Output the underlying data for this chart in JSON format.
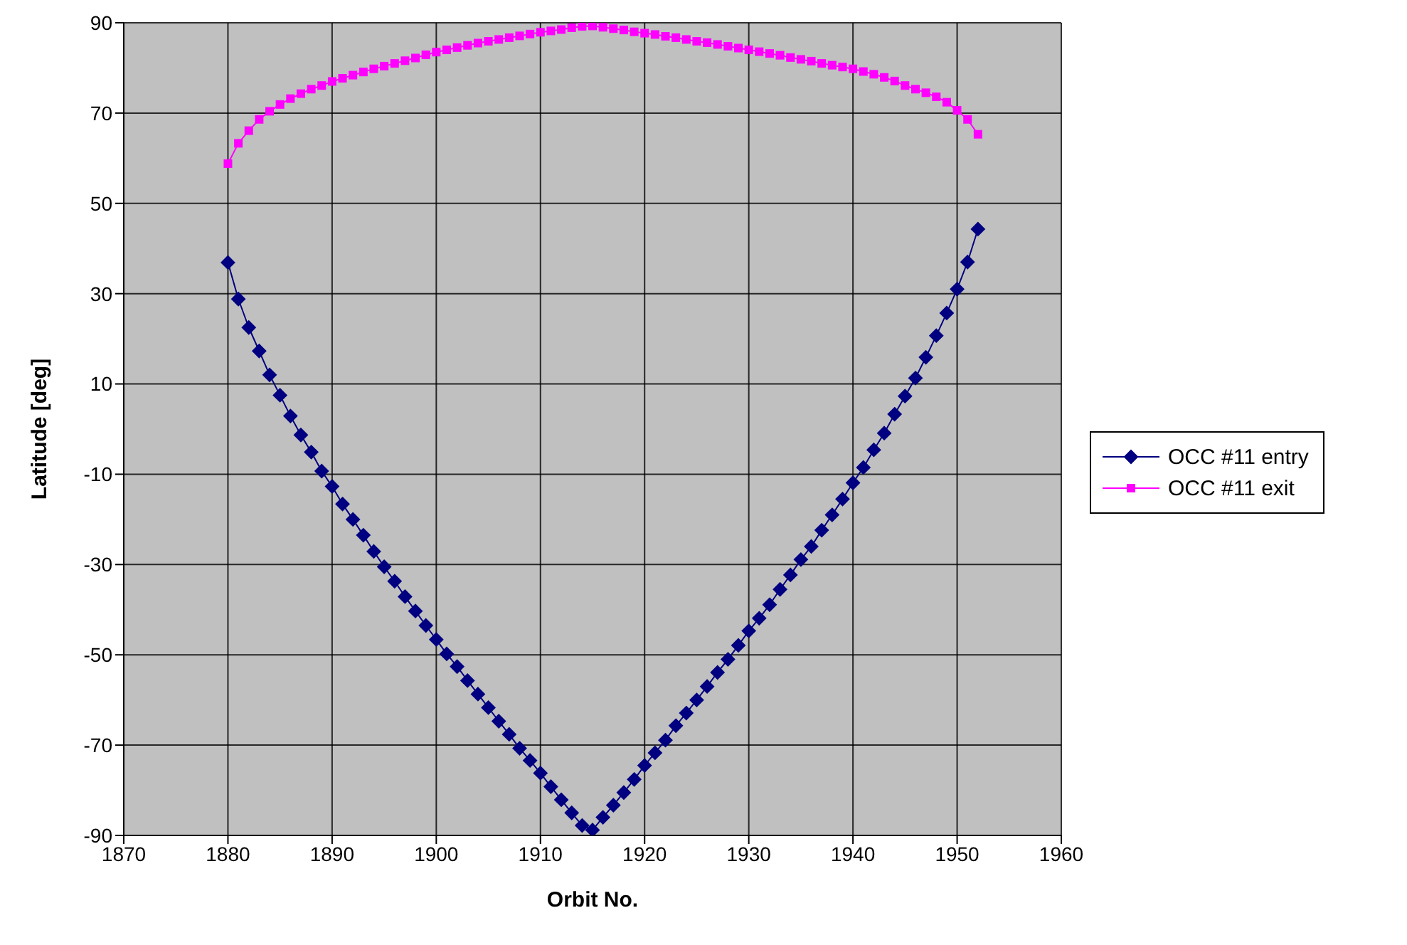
{
  "chart_data": {
    "type": "line",
    "xlabel": "Orbit No.",
    "ylabel": "Latitude [deg]",
    "x": [
      1880,
      1881,
      1882,
      1883,
      1884,
      1885,
      1886,
      1887,
      1888,
      1889,
      1890,
      1891,
      1892,
      1893,
      1894,
      1895,
      1896,
      1897,
      1898,
      1899,
      1900,
      1901,
      1902,
      1903,
      1904,
      1905,
      1906,
      1907,
      1908,
      1909,
      1910,
      1911,
      1912,
      1913,
      1914,
      1915,
      1916,
      1917,
      1918,
      1919,
      1920,
      1921,
      1922,
      1923,
      1924,
      1925,
      1926,
      1927,
      1928,
      1929,
      1930,
      1931,
      1932,
      1933,
      1934,
      1935,
      1936,
      1937,
      1938,
      1939,
      1940,
      1941,
      1942,
      1943,
      1944,
      1945,
      1946,
      1947,
      1948,
      1949,
      1950,
      1951,
      1952
    ],
    "series": [
      {
        "name": "OCC #11 entry",
        "color": "#000080",
        "marker": "diamond",
        "values": [
          36.9,
          28.8,
          22.5,
          17.3,
          12.0,
          7.5,
          2.9,
          -1.3,
          -5.1,
          -9.3,
          -12.7,
          -16.6,
          -20.0,
          -23.5,
          -27.1,
          -30.5,
          -33.7,
          -37.1,
          -40.3,
          -43.5,
          -46.6,
          -49.8,
          -52.6,
          -55.7,
          -58.7,
          -61.7,
          -64.7,
          -67.6,
          -70.7,
          -73.4,
          -76.2,
          -79.2,
          -82.1,
          -85.0,
          -87.8,
          -88.8,
          -86.0,
          -83.3,
          -80.5,
          -77.6,
          -74.5,
          -71.7,
          -68.9,
          -65.7,
          -62.9,
          -60.0,
          -57.0,
          -53.9,
          -51.0,
          -47.9,
          -44.7,
          -41.9,
          -38.9,
          -35.5,
          -32.3,
          -28.9,
          -26.0,
          -22.4,
          -19.0,
          -15.5,
          -11.9,
          -8.5,
          -4.6,
          -0.9,
          3.3,
          7.3,
          11.3,
          15.9,
          20.7,
          25.7,
          31.0,
          37.0,
          44.3
        ]
      },
      {
        "name": "OCC #11 exit",
        "color": "#ff00ff",
        "marker": "square",
        "values": [
          58.8,
          63.3,
          66.1,
          68.6,
          70.4,
          71.9,
          73.2,
          74.3,
          75.3,
          76.1,
          77.0,
          77.7,
          78.4,
          79.1,
          79.8,
          80.4,
          81.0,
          81.6,
          82.2,
          82.9,
          83.5,
          84.0,
          84.5,
          85.0,
          85.5,
          85.9,
          86.3,
          86.7,
          87.1,
          87.5,
          87.9,
          88.2,
          88.5,
          88.9,
          89.2,
          89.3,
          89.0,
          88.7,
          88.4,
          88.0,
          87.7,
          87.4,
          87.0,
          86.7,
          86.3,
          85.9,
          85.6,
          85.2,
          84.8,
          84.4,
          84.0,
          83.6,
          83.2,
          82.8,
          82.3,
          81.9,
          81.5,
          81.0,
          80.6,
          80.2,
          79.8,
          79.2,
          78.6,
          77.9,
          77.1,
          76.1,
          75.3,
          74.5,
          73.6,
          72.4,
          70.6,
          68.6,
          65.3
        ]
      }
    ],
    "xlim": [
      1870,
      1960
    ],
    "xticks": [
      1870,
      1880,
      1890,
      1900,
      1910,
      1920,
      1930,
      1940,
      1950,
      1960
    ],
    "ylim": [
      -90,
      90
    ],
    "yticks": [
      -90,
      -70,
      -50,
      -30,
      -10,
      10,
      30,
      50,
      70,
      90
    ],
    "grid": true,
    "legend": "right",
    "line_style": "solid"
  }
}
